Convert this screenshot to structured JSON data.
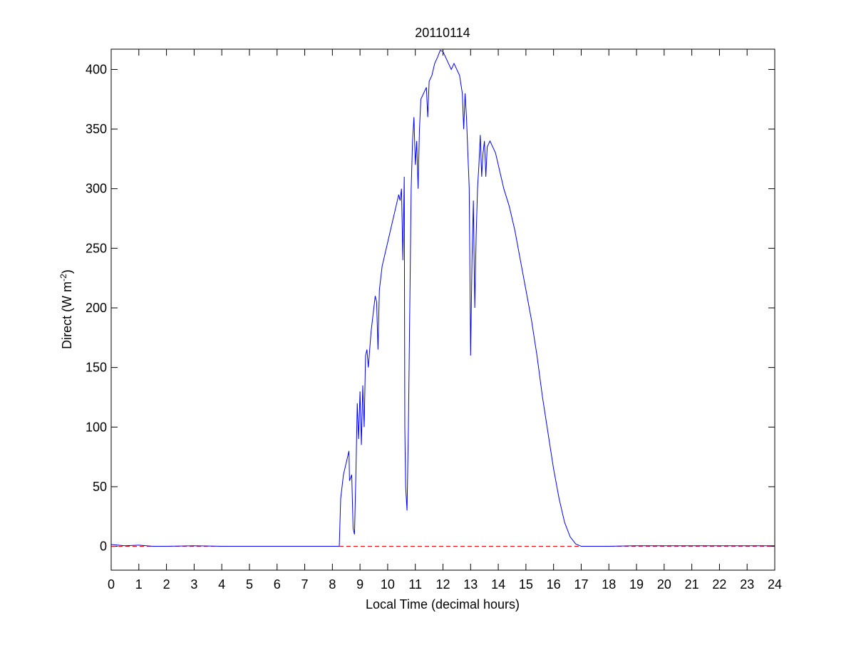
{
  "chart_data": {
    "type": "line",
    "title": "20110114",
    "xlabel": "Local Time (decimal hours)",
    "ylabel_parts": [
      "Direct (W m",
      "-2",
      ")"
    ],
    "xlim": [
      0,
      24
    ],
    "ylim": [
      -20,
      417
    ],
    "xticks": [
      0,
      1,
      2,
      3,
      4,
      5,
      6,
      7,
      8,
      9,
      10,
      11,
      12,
      13,
      14,
      15,
      16,
      17,
      18,
      19,
      20,
      21,
      22,
      23,
      24
    ],
    "yticks": [
      0,
      50,
      100,
      150,
      200,
      250,
      300,
      350,
      400
    ],
    "reference_line": {
      "y": 0,
      "color": "#ff0000",
      "style": "dashed"
    },
    "series": [
      {
        "name": "Direct",
        "color": "#0000ff",
        "x": [
          0,
          0.5,
          1,
          1.5,
          2,
          3,
          4,
          5,
          6,
          7,
          8,
          8.25,
          8.3,
          8.4,
          8.6,
          8.62,
          8.7,
          8.75,
          8.8,
          8.85,
          8.9,
          8.95,
          9.0,
          9.05,
          9.1,
          9.15,
          9.2,
          9.25,
          9.3,
          9.4,
          9.5,
          9.55,
          9.6,
          9.65,
          9.7,
          9.8,
          9.9,
          10.0,
          10.1,
          10.2,
          10.3,
          10.4,
          10.45,
          10.5,
          10.55,
          10.6,
          10.62,
          10.65,
          10.7,
          10.75,
          10.8,
          10.85,
          10.9,
          10.95,
          11.0,
          11.05,
          11.1,
          11.15,
          11.2,
          11.3,
          11.4,
          11.45,
          11.5,
          11.6,
          11.7,
          11.8,
          11.9,
          12.0,
          12.1,
          12.2,
          12.3,
          12.4,
          12.5,
          12.6,
          12.7,
          12.75,
          12.8,
          12.85,
          12.9,
          12.95,
          13.0,
          13.05,
          13.1,
          13.15,
          13.2,
          13.25,
          13.3,
          13.35,
          13.4,
          13.45,
          13.5,
          13.55,
          13.6,
          13.7,
          13.8,
          13.9,
          14.0,
          14.1,
          14.2,
          14.4,
          14.6,
          14.8,
          15.0,
          15.2,
          15.4,
          15.6,
          15.8,
          16.0,
          16.2,
          16.4,
          16.6,
          16.8,
          17.0,
          18,
          19,
          20,
          21,
          22,
          23,
          24
        ],
        "values": [
          1.5,
          0.5,
          1,
          0,
          0,
          0.5,
          0,
          0,
          0,
          0,
          0,
          0,
          40,
          60,
          80,
          55,
          60,
          15,
          10,
          60,
          120,
          90,
          130,
          85,
          135,
          100,
          160,
          165,
          150,
          180,
          200,
          210,
          205,
          165,
          215,
          235,
          245,
          255,
          265,
          275,
          285,
          295,
          290,
          300,
          240,
          310,
          100,
          50,
          30,
          100,
          200,
          300,
          340,
          360,
          320,
          340,
          300,
          350,
          375,
          380,
          385,
          360,
          390,
          395,
          405,
          410,
          416,
          415,
          410,
          405,
          400,
          405,
          400,
          395,
          380,
          350,
          380,
          360,
          330,
          300,
          160,
          240,
          290,
          200,
          260,
          300,
          320,
          345,
          310,
          330,
          340,
          310,
          335,
          340,
          335,
          330,
          320,
          310,
          300,
          285,
          265,
          240,
          215,
          190,
          160,
          125,
          95,
          65,
          40,
          20,
          8,
          2,
          0,
          0,
          0.5,
          0.5,
          0.5,
          0.5,
          0.5,
          0.5
        ]
      }
    ]
  }
}
